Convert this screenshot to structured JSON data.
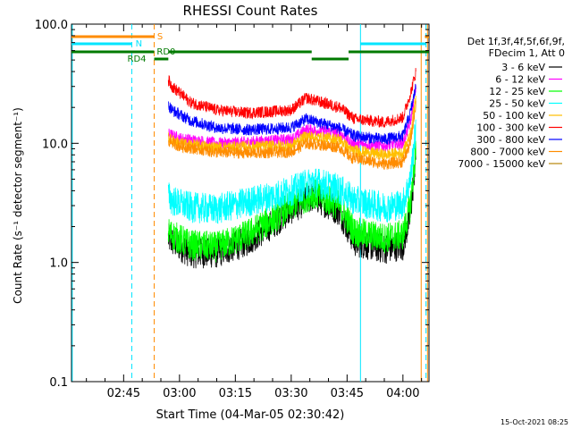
{
  "chart_data": {
    "type": "line",
    "title": "RHESSI Count Rates",
    "xlabel": "Start Time (04-Mar-05 02:30:42)",
    "ylabel": "Count Rate (s⁻¹ detector segment⁻¹)",
    "ylog": true,
    "ylim": [
      0.1,
      100.0
    ],
    "xlim_minutes_from_0230": [
      1.0,
      97.0
    ],
    "x_ticks": [
      {
        "label": "02:45",
        "min": 15
      },
      {
        "label": "03:00",
        "min": 30
      },
      {
        "label": "03:15",
        "min": 45
      },
      {
        "label": "03:30",
        "min": 60
      },
      {
        "label": "03:45",
        "min": 75
      },
      {
        "label": "04:00",
        "min": 90
      }
    ],
    "y_ticks": [
      {
        "label": "100.0",
        "v": 100
      },
      {
        "label": "10.0",
        "v": 10
      },
      {
        "label": "1.0",
        "v": 1
      },
      {
        "label": "0.1",
        "v": 0.1
      }
    ],
    "legend_title": [
      "Det 1f,3f,4f,5f,6f,9f,",
      "FDecim 1, Att 0"
    ],
    "series": [
      {
        "name": "3 - 6 keV",
        "color": "#000000",
        "points": [
          [
            27,
            1.6
          ],
          [
            28,
            1.5
          ],
          [
            33,
            1.2
          ],
          [
            40,
            1.2
          ],
          [
            48,
            1.5
          ],
          [
            55,
            2.1
          ],
          [
            60,
            2.8
          ],
          [
            66,
            3.6
          ],
          [
            73,
            2.7
          ],
          [
            77,
            1.5
          ],
          [
            85,
            1.3
          ],
          [
            90,
            1.4
          ],
          [
            92,
            2.5
          ],
          [
            93.5,
            8
          ]
        ]
      },
      {
        "name": "6 - 12 keV",
        "color": "#ff00ff",
        "points": [
          [
            27,
            12
          ],
          [
            30,
            11
          ],
          [
            40,
            10
          ],
          [
            50,
            10.3
          ],
          [
            60,
            10.8
          ],
          [
            64,
            13
          ],
          [
            73,
            12.3
          ],
          [
            76,
            10
          ],
          [
            85,
            9.5
          ],
          [
            90,
            10
          ],
          [
            92,
            15
          ],
          [
            93.5,
            30
          ]
        ]
      },
      {
        "name": "12 - 25 keV",
        "color": "#00ff00",
        "points": [
          [
            27,
            1.8
          ],
          [
            28,
            1.7
          ],
          [
            33,
            1.4
          ],
          [
            40,
            1.35
          ],
          [
            48,
            1.7
          ],
          [
            55,
            2.3
          ],
          [
            60,
            3.0
          ],
          [
            66,
            3.8
          ],
          [
            73,
            3.0
          ],
          [
            77,
            1.8
          ],
          [
            85,
            1.6
          ],
          [
            90,
            1.7
          ],
          [
            92,
            3
          ],
          [
            93.5,
            9
          ]
        ]
      },
      {
        "name": "25 - 50 keV",
        "color": "#00ffff",
        "points": [
          [
            27,
            3.6
          ],
          [
            28,
            3.3
          ],
          [
            33,
            2.9
          ],
          [
            40,
            2.8
          ],
          [
            48,
            3.2
          ],
          [
            55,
            3.6
          ],
          [
            60,
            4.0
          ],
          [
            66,
            4.8
          ],
          [
            73,
            4.1
          ],
          [
            77,
            3.3
          ],
          [
            85,
            2.9
          ],
          [
            90,
            3.1
          ],
          [
            92,
            5
          ],
          [
            93.5,
            14
          ]
        ]
      },
      {
        "name": "50 - 100 keV",
        "color": "#ffbf00",
        "points": [
          [
            27,
            11
          ],
          [
            30,
            10
          ],
          [
            40,
            9.2
          ],
          [
            50,
            9.4
          ],
          [
            60,
            9.6
          ],
          [
            64,
            11.5
          ],
          [
            73,
            10.8
          ],
          [
            76,
            8.8
          ],
          [
            85,
            8
          ],
          [
            90,
            8.3
          ],
          [
            92,
            12
          ],
          [
            93.5,
            25
          ]
        ]
      },
      {
        "name": "100 - 300 keV",
        "color": "#ff0000",
        "points": [
          [
            27,
            34
          ],
          [
            28,
            30
          ],
          [
            33,
            22
          ],
          [
            40,
            19
          ],
          [
            48,
            18
          ],
          [
            55,
            18.5
          ],
          [
            60,
            19
          ],
          [
            64,
            24
          ],
          [
            73,
            20
          ],
          [
            77,
            16
          ],
          [
            85,
            15
          ],
          [
            90,
            16.5
          ],
          [
            92,
            26
          ],
          [
            93.5,
            40
          ]
        ]
      },
      {
        "name": "300 - 800 keV",
        "color": "#0000ff",
        "points": [
          [
            27,
            21
          ],
          [
            28,
            19
          ],
          [
            33,
            15.5
          ],
          [
            40,
            13.5
          ],
          [
            48,
            13
          ],
          [
            55,
            13.2
          ],
          [
            60,
            13.6
          ],
          [
            64,
            16
          ],
          [
            73,
            13.4
          ],
          [
            77,
            11.5
          ],
          [
            85,
            10.8
          ],
          [
            90,
            11.5
          ],
          [
            92,
            18
          ],
          [
            93.5,
            30
          ]
        ]
      },
      {
        "name": "800 - 7000 keV",
        "color": "#ff8c00",
        "points": [
          [
            27,
            10.5
          ],
          [
            30,
            9.5
          ],
          [
            40,
            8.4
          ],
          [
            50,
            8.3
          ],
          [
            60,
            8.5
          ],
          [
            64,
            10
          ],
          [
            73,
            9.3
          ],
          [
            76,
            7.6
          ],
          [
            85,
            6.7
          ],
          [
            90,
            7
          ],
          [
            92,
            10
          ],
          [
            93.5,
            22
          ]
        ]
      },
      {
        "name": "7000 - 15000 keV",
        "color": "#b8860b",
        "points": []
      }
    ],
    "annotations": {
      "s_label": "S",
      "n_label": "N",
      "rd0_label": "RD0",
      "rd4_label": "RD4"
    },
    "timestamp": "15-Oct-2021 08:25"
  }
}
